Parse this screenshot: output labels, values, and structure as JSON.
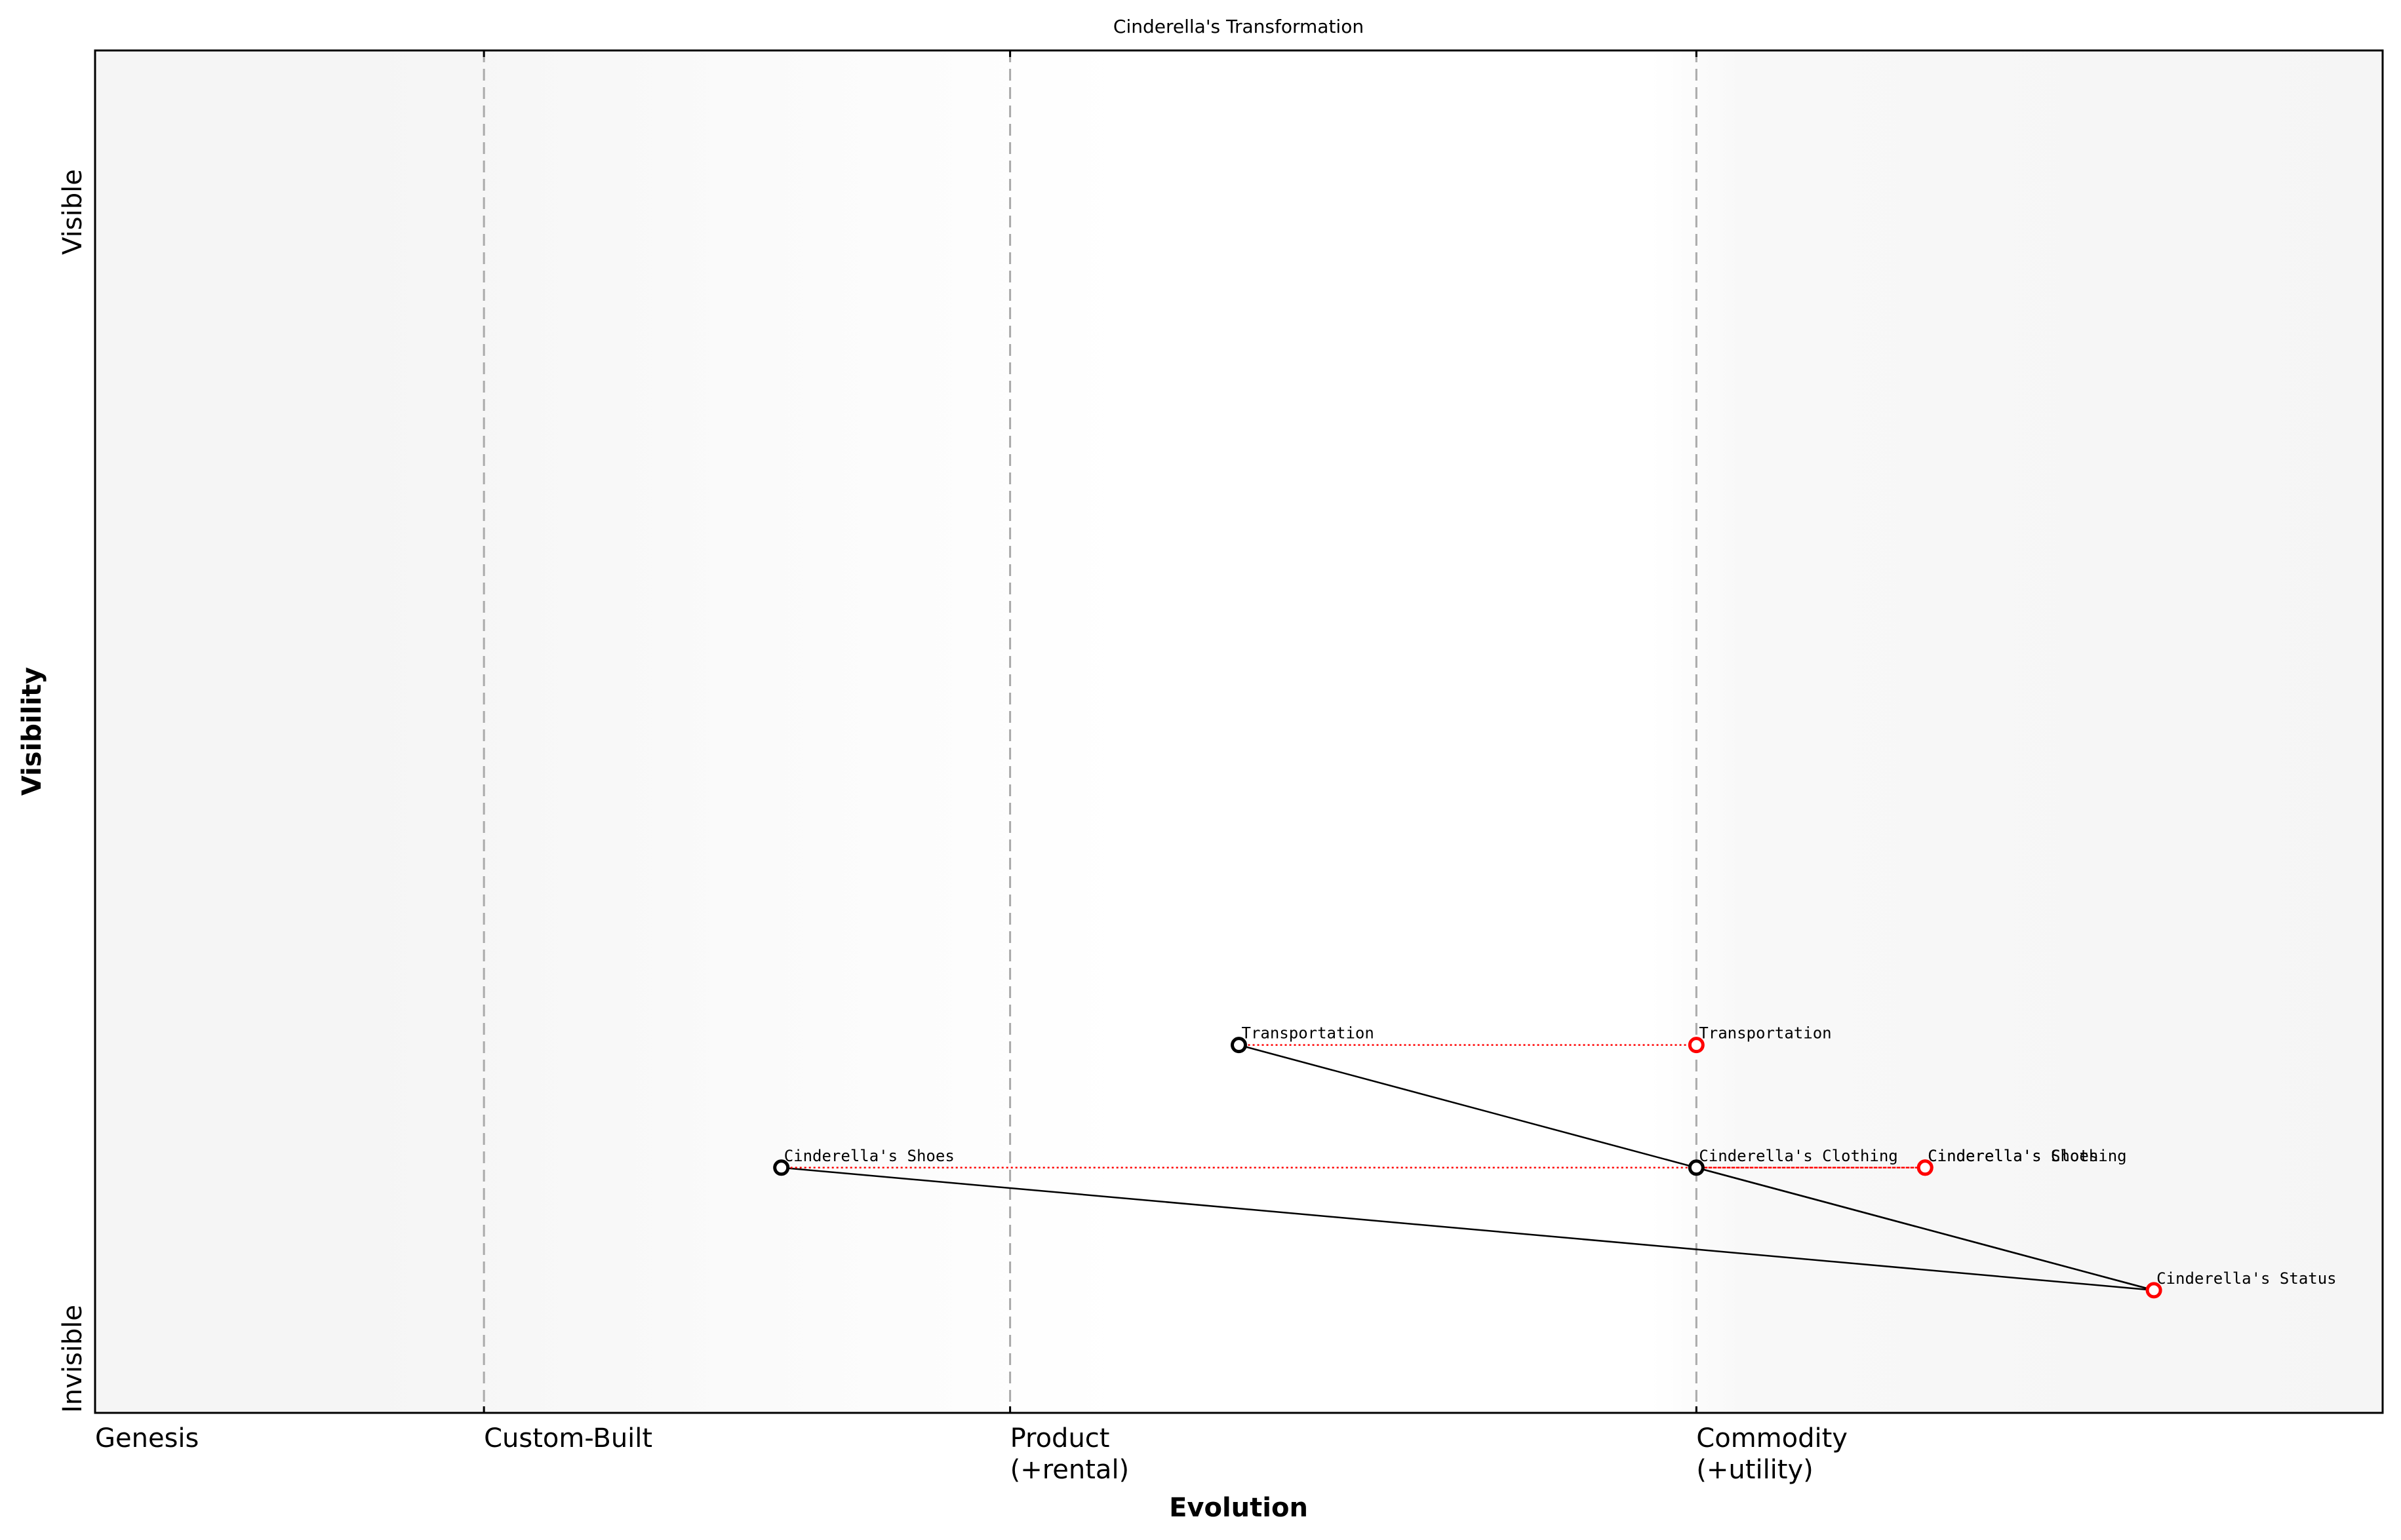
{
  "title": "Cinderella's Transformation",
  "axes": {
    "xlabel": "Evolution",
    "ylabel": "Visibility",
    "y_ticks": [
      {
        "label": "Invisible",
        "value": 0.0
      },
      {
        "label": "Visible",
        "value": 0.85
      }
    ],
    "x_stages": [
      {
        "line1": "Genesis",
        "line2": "",
        "value": 0.0
      },
      {
        "line1": "Custom-Built",
        "line2": "",
        "value": 0.17
      },
      {
        "line1": "Product",
        "line2": "(+rental)",
        "value": 0.4
      },
      {
        "line1": "Commodity",
        "line2": "(+utility)",
        "value": 0.7
      }
    ]
  },
  "colors": {
    "component_stroke": "#000000",
    "evolved_stroke": "#ff0000",
    "evolution_line": "#ff0000",
    "stage_divider": "#aaaaaa",
    "band_edge": "#f5f5f5",
    "band_center": "#ffffff"
  },
  "chart_data": {
    "type": "scatter",
    "title": "Cinderella's Transformation",
    "xlabel": "Evolution",
    "ylabel": "Visibility",
    "xlim": [
      0,
      1
    ],
    "ylim": [
      0,
      1
    ],
    "grid": false,
    "stage_boundaries": [
      0.17,
      0.4,
      0.7
    ],
    "components": [
      {
        "name": "Transportation",
        "evolution": 0.5,
        "visibility": 0.27
      },
      {
        "name": "Cinderella's Shoes",
        "evolution": 0.3,
        "visibility": 0.18
      },
      {
        "name": "Cinderella's Clothing",
        "evolution": 0.7,
        "visibility": 0.18
      }
    ],
    "evolved_components": [
      {
        "name": "Transportation",
        "evolution": 0.7,
        "visibility": 0.27
      },
      {
        "name": "Cinderella's Shoes",
        "evolution": 0.8,
        "visibility": 0.18
      },
      {
        "name": "Cinderella's Clothing",
        "evolution": 0.8,
        "visibility": 0.18
      },
      {
        "name": "Cinderella's Status",
        "evolution": 0.9,
        "visibility": 0.09
      }
    ],
    "links": [
      {
        "from": "Transportation",
        "to": "Cinderella's Status"
      },
      {
        "from": "Cinderella's Clothing",
        "to": "Cinderella's Status"
      },
      {
        "from": "Cinderella's Shoes",
        "to": "Cinderella's Status"
      }
    ],
    "evolution_arrows": [
      {
        "name": "Transportation",
        "from": 0.5,
        "to": 0.7,
        "visibility": 0.27
      },
      {
        "name": "Cinderella's Shoes",
        "from": 0.3,
        "to": 0.8,
        "visibility": 0.18
      },
      {
        "name": "Cinderella's Clothing",
        "from": 0.7,
        "to": 0.8,
        "visibility": 0.18
      }
    ]
  }
}
